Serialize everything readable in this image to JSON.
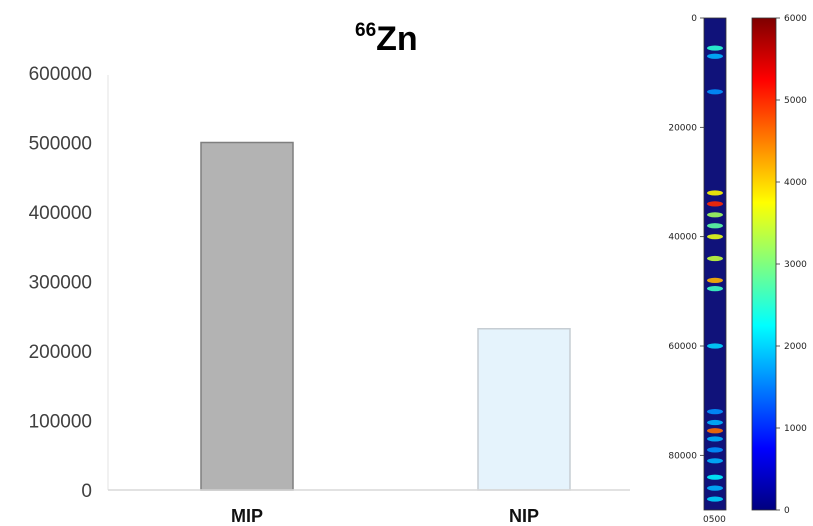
{
  "chart_data": [
    {
      "type": "bar",
      "title_superscript": "66",
      "title_main": "Zn",
      "categories": [
        "MIP",
        "NIP"
      ],
      "values": [
        500000,
        232000
      ],
      "ylim": [
        0,
        600000
      ],
      "yticks": [
        "0",
        "100000",
        "200000",
        "300000",
        "400000",
        "500000",
        "600000"
      ],
      "colors": [
        "#b3b3b3",
        "#e5f3fc"
      ],
      "edge_colors": [
        "#7f7f7f",
        "#c6cdd3"
      ],
      "grid": false
    },
    {
      "type": "heatmap",
      "colormap": "jet",
      "y_ticks": [
        "0",
        "20000",
        "40000",
        "60000",
        "80000"
      ],
      "ylim": [
        0,
        90000
      ],
      "x_ticks": [
        "0",
        "500"
      ],
      "x_tick_label_text": "0500",
      "colorbar_ticks": [
        "0",
        "1000",
        "2000",
        "3000",
        "4000",
        "5000",
        "6000"
      ],
      "colorbar_range": [
        0,
        6000
      ],
      "hotspots": [
        {
          "y": 5500,
          "v": 2500
        },
        {
          "y": 7000,
          "v": 1800
        },
        {
          "y": 13500,
          "v": 1600
        },
        {
          "y": 32000,
          "v": 3800
        },
        {
          "y": 34000,
          "v": 5000
        },
        {
          "y": 36000,
          "v": 3200
        },
        {
          "y": 38000,
          "v": 2800
        },
        {
          "y": 40000,
          "v": 3600
        },
        {
          "y": 44000,
          "v": 3400
        },
        {
          "y": 48000,
          "v": 4200
        },
        {
          "y": 49500,
          "v": 2600
        },
        {
          "y": 60000,
          "v": 2000
        },
        {
          "y": 72000,
          "v": 1600
        },
        {
          "y": 74000,
          "v": 1800
        },
        {
          "y": 75500,
          "v": 4600
        },
        {
          "y": 77000,
          "v": 1800
        },
        {
          "y": 79000,
          "v": 1600
        },
        {
          "y": 81000,
          "v": 1800
        },
        {
          "y": 84000,
          "v": 2200
        },
        {
          "y": 86000,
          "v": 1800
        },
        {
          "y": 88000,
          "v": 2000
        }
      ]
    }
  ]
}
